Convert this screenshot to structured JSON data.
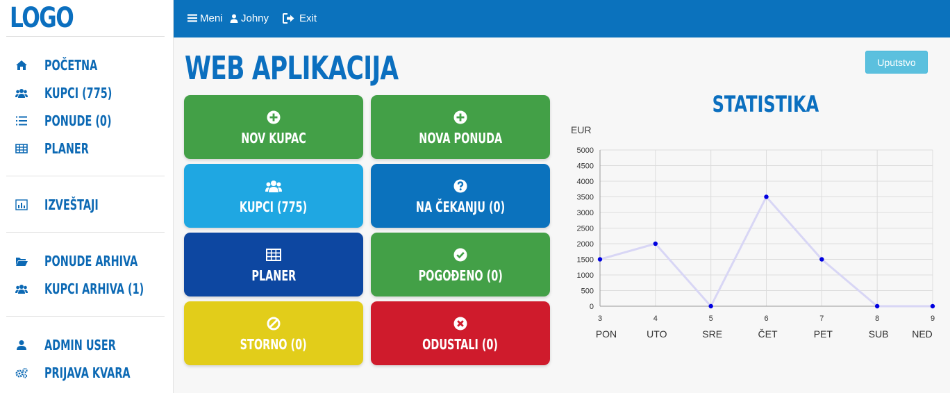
{
  "brand": {
    "logo": "LOGO"
  },
  "sidebar": {
    "groups": [
      [
        {
          "label": "POČETNA",
          "icon": "home-icon"
        },
        {
          "label": "KUPCI (775)",
          "icon": "users-icon"
        },
        {
          "label": "PONUDE (0)",
          "icon": "list-ol-icon"
        },
        {
          "label": "PLANER",
          "icon": "table-icon"
        }
      ],
      [
        {
          "label": "IZVEŠTAJI",
          "icon": "bar-chart-icon"
        }
      ],
      [
        {
          "label": "PONUDE ARHIVA",
          "icon": "folder-open-icon"
        },
        {
          "label": "KUPCI ARHIVA (1)",
          "icon": "users-icon"
        }
      ],
      [
        {
          "label": "ADMIN USER",
          "icon": "user-icon"
        },
        {
          "label": "PRIJAVA KVARA",
          "icon": "gears-icon"
        }
      ]
    ]
  },
  "topbar": {
    "menu_label": "Meni",
    "user_label": "Johny",
    "exit_label": "Exit"
  },
  "main": {
    "title": "WEB APLIKACIJA",
    "help_label": "Uputstvo",
    "tiles": [
      {
        "label": "NOV KUPAC",
        "icon": "plus-circle-icon",
        "color": "#43a047"
      },
      {
        "label": "NOVA PONUDA",
        "icon": "plus-circle-icon",
        "color": "#43a047"
      },
      {
        "label": "KUPCI (775)",
        "icon": "users-icon",
        "color": "#1fa7e2"
      },
      {
        "label": "NA ČEKANJU (0)",
        "icon": "question-circle-icon",
        "color": "#0b72bd"
      },
      {
        "label": "PLANER",
        "icon": "table-icon",
        "color": "#0d47a1"
      },
      {
        "label": "POGOĐENO (0)",
        "icon": "check-circle-icon",
        "color": "#43a047"
      },
      {
        "label": "STORNO (0)",
        "icon": "ban-icon",
        "color": "#e2cd1a"
      },
      {
        "label": "ODUSTALI (0)",
        "icon": "times-circle-icon",
        "color": "#cf1b2c"
      }
    ]
  },
  "chart_data": {
    "type": "line",
    "title": "STATISTIKA",
    "ylabel": "EUR",
    "x": [
      3,
      4,
      5,
      6,
      7,
      8,
      9
    ],
    "categories": [
      "PON",
      "UTO",
      "SRE",
      "ČET",
      "PET",
      "SUB",
      "NED"
    ],
    "series": [
      {
        "values": [
          1500,
          2000,
          0,
          3500,
          1500,
          0,
          0
        ]
      }
    ],
    "ylim": [
      0,
      5000
    ],
    "yticks": [
      0,
      500,
      1000,
      1500,
      2000,
      2500,
      3000,
      3500,
      4000,
      4500,
      5000
    ],
    "grid": true,
    "line_color": "#d8d6f5",
    "point_color": "#0000e0"
  }
}
